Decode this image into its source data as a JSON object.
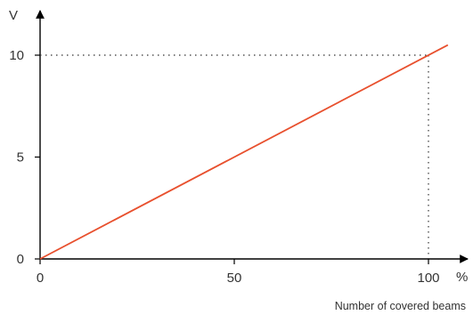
{
  "chart_data": {
    "type": "line",
    "title": "",
    "xlabel": "Number of covered beams",
    "x_unit": "%",
    "y_unit": "V",
    "xlim": [
      0,
      105
    ],
    "ylim": [
      0,
      10.5
    ],
    "x_ticks": [
      0,
      50,
      100
    ],
    "y_ticks": [
      0,
      5,
      10
    ],
    "grid": false,
    "reference_point": {
      "x": 100,
      "y": 10
    },
    "series": [
      {
        "x": [
          0,
          105
        ],
        "y": [
          0,
          10.5
        ],
        "color": "#e8502e"
      }
    ]
  }
}
